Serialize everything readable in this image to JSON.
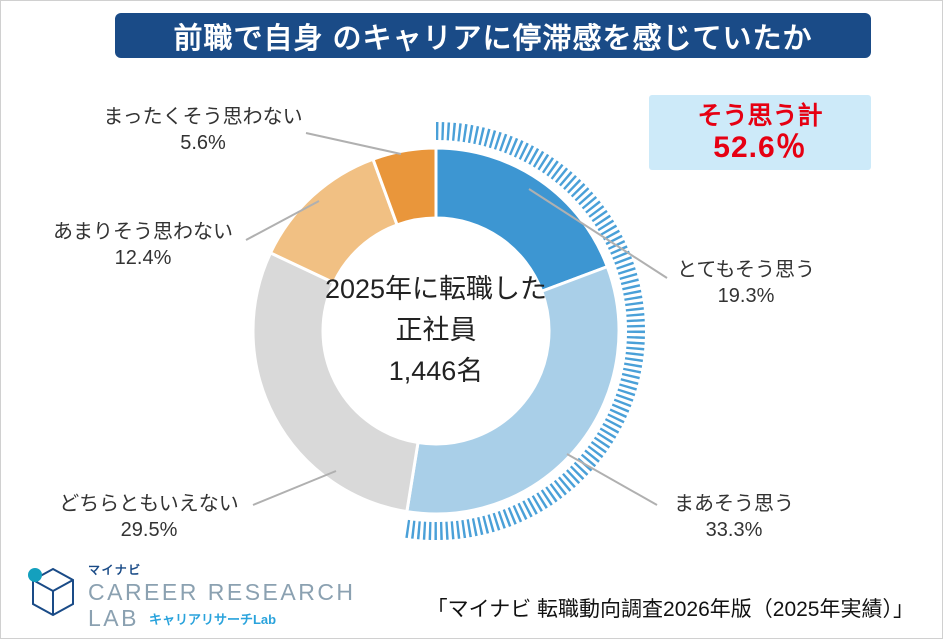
{
  "page": {
    "title": "前職で自身 のキャリアに停滞感を感じていたか",
    "source": "「マイナビ 転職動向調査2026年版（2025年実績）」"
  },
  "summary_box": {
    "label": "そう思う計",
    "value": "52.6％"
  },
  "center_label": {
    "line1": "2025年に転職した",
    "line2": "正社員",
    "line3": "1,446名"
  },
  "logo": {
    "brand": "マイナビ",
    "line1": "CAREER RESEARCH",
    "line2": "LAB",
    "sub": "キャリアリサーチLab"
  },
  "chart_data": {
    "type": "pie",
    "subtype": "donut",
    "title": "前職で自身 のキャリアに停滞感を感じていたか",
    "unit": "%",
    "start_angle_deg": -90,
    "direction": "clockwise",
    "categories": [
      "とてもそう思う",
      "まあそう思う",
      "どちらともいえない",
      "あまりそう思わない",
      "まったくそう思わない"
    ],
    "values": [
      19.3,
      33.3,
      29.5,
      12.4,
      5.6
    ],
    "value_labels": [
      "19.3%",
      "33.3%",
      "29.5%",
      "12.4%",
      "5.6%"
    ],
    "colors": [
      "#3d96d2",
      "#a9cfe8",
      "#d9d9d9",
      "#f1c083",
      "#e9963b"
    ],
    "emphasis_color": "#4aa0d8",
    "emphasis": {
      "label": "そう思う計",
      "value": 52.6,
      "covers": [
        "とてもそう思う",
        "まあそう思う"
      ]
    },
    "center_label": "2025年に転職した正社員 1,446名",
    "sample_size": 1446,
    "legend_position": "around-chart-callouts"
  }
}
